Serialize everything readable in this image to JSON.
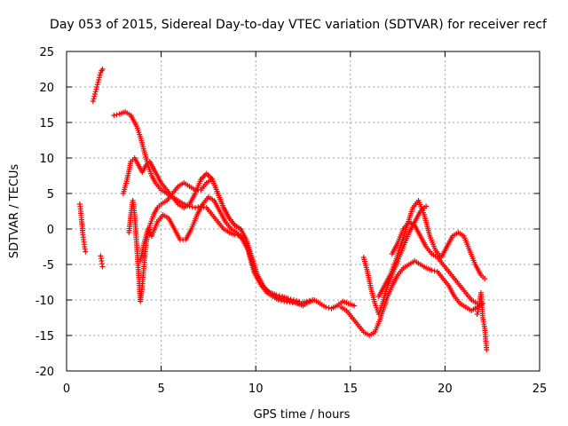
{
  "chart_data": {
    "type": "scatter",
    "title": "Day 053 of 2015, Sidereal Day-to-day VTEC variation (SDTVAR) for receiver recf",
    "xlabel": "GPS time / hours",
    "ylabel": "SDTVAR / TECUs",
    "xlim": [
      0,
      25
    ],
    "ylim": [
      -20,
      25
    ],
    "xticks": [
      0,
      5,
      10,
      15,
      20,
      25
    ],
    "yticks": [
      -20,
      -15,
      -10,
      -5,
      0,
      5,
      10,
      15,
      20,
      25
    ],
    "grid": true,
    "marker": "+",
    "color": "#ff0000",
    "series": [
      {
        "name": "s1",
        "x": [
          0.7,
          0.75,
          0.8,
          0.85,
          0.9,
          0.95,
          1.0
        ],
        "y": [
          3.5,
          2.5,
          1.0,
          -0.5,
          -1.5,
          -2.5,
          -3.2
        ]
      },
      {
        "name": "s2",
        "x": [
          1.4,
          1.5,
          1.6,
          1.7,
          1.8,
          1.85,
          1.9
        ],
        "y": [
          18.0,
          19.0,
          20.0,
          21.0,
          22.0,
          22.3,
          22.5
        ]
      },
      {
        "name": "s3",
        "x": [
          1.8,
          1.85,
          1.9
        ],
        "y": [
          -3.8,
          -4.5,
          -5.3
        ]
      },
      {
        "name": "s4",
        "x": [
          2.5,
          2.8,
          3.1,
          3.4,
          3.7,
          3.9,
          4.1,
          4.3,
          4.5,
          4.7,
          5.0,
          5.3,
          5.6,
          5.9,
          6.2,
          6.5,
          6.8,
          7.1,
          7.4,
          7.7,
          8.0,
          8.3,
          8.6,
          8.9,
          9.2,
          9.5,
          9.8,
          10.0,
          10.3,
          10.6,
          10.9,
          11.2,
          11.5,
          11.8,
          12.1,
          12.4,
          12.7,
          13.0
        ],
        "y": [
          16.0,
          16.2,
          16.5,
          16.0,
          14.5,
          13.0,
          11.0,
          9.0,
          7.5,
          6.5,
          5.5,
          5.0,
          4.5,
          4.0,
          3.5,
          3.2,
          3.0,
          3.2,
          3.0,
          2.0,
          1.0,
          0.0,
          -0.5,
          -0.8,
          -1.0,
          -2.0,
          -4.5,
          -6.5,
          -8.0,
          -9.0,
          -9.5,
          -10.0,
          -10.2,
          -10.3,
          -10.4,
          -10.5,
          -10.2,
          -10.0
        ]
      },
      {
        "name": "s5",
        "x": [
          3.0,
          3.2,
          3.4,
          3.6,
          3.8,
          4.0,
          4.2,
          4.4,
          4.6,
          4.8,
          5.0,
          5.3,
          5.6,
          5.9,
          6.2,
          6.5,
          6.8,
          7.1,
          7.4,
          7.7,
          8.0,
          8.3,
          8.6,
          8.9,
          9.2,
          9.5,
          9.8,
          10.1,
          10.4,
          10.7,
          11.0,
          11.3,
          11.6,
          11.9,
          12.2,
          12.5,
          12.8,
          13.1,
          13.4,
          13.7,
          14.0,
          14.3,
          14.6,
          14.9,
          15.2
        ],
        "y": [
          5.0,
          7.0,
          9.5,
          10.0,
          9.0,
          8.0,
          9.0,
          9.5,
          8.5,
          7.5,
          6.5,
          5.5,
          4.5,
          3.5,
          3.0,
          3.5,
          5.0,
          7.0,
          7.8,
          7.0,
          5.0,
          3.0,
          1.5,
          0.5,
          0.0,
          -1.5,
          -4.0,
          -6.5,
          -8.0,
          -9.0,
          -9.5,
          -9.8,
          -10.0,
          -10.2,
          -10.5,
          -10.8,
          -10.3,
          -10.0,
          -10.5,
          -11.0,
          -11.2,
          -10.8,
          -10.2,
          -10.5,
          -10.8
        ]
      },
      {
        "name": "s6",
        "x": [
          3.3,
          3.4,
          3.5,
          3.6,
          3.7,
          3.8,
          3.9,
          4.0,
          4.1,
          4.2,
          4.4,
          4.6,
          4.8,
          5.0,
          5.3,
          5.6,
          5.9,
          6.2,
          6.5,
          6.8,
          7.1,
          7.4,
          7.7,
          8.0,
          8.3,
          8.6,
          8.9,
          9.2
        ],
        "y": [
          -0.5,
          2.0,
          4.0,
          2.0,
          -2.0,
          -6.0,
          -10.2,
          -8.0,
          -5.0,
          -2.0,
          0.5,
          2.0,
          3.0,
          3.5,
          4.0,
          5.0,
          6.0,
          6.5,
          6.0,
          5.5,
          5.5,
          6.5,
          7.0,
          5.0,
          3.0,
          1.5,
          0.5,
          0.0
        ]
      },
      {
        "name": "s7",
        "x": [
          3.9,
          4.1,
          4.3,
          4.5,
          4.8,
          5.1,
          5.4,
          5.7,
          6.0,
          6.3,
          6.6,
          6.9,
          7.2,
          7.5,
          7.8,
          8.1,
          8.4,
          8.7,
          9.0,
          9.3,
          9.6,
          9.9,
          10.2,
          10.5,
          10.8,
          11.1,
          11.4,
          11.7,
          12.0,
          12.3
        ],
        "y": [
          -4.5,
          -2.0,
          0.0,
          -1.0,
          1.0,
          2.0,
          1.5,
          0.0,
          -1.5,
          -1.5,
          0.0,
          2.0,
          3.5,
          4.5,
          4.0,
          2.5,
          1.0,
          0.0,
          -0.5,
          -1.5,
          -3.0,
          -6.0,
          -7.5,
          -8.5,
          -9.0,
          -9.3,
          -9.5,
          -9.8,
          -10.0,
          -10.2
        ]
      },
      {
        "name": "s8",
        "x": [
          14.5,
          14.8,
          15.1,
          15.4,
          15.7,
          16.0,
          16.3,
          16.6,
          16.9,
          17.2,
          17.5,
          17.8,
          18.1,
          18.4,
          18.7,
          19.0,
          19.3,
          19.6,
          19.9,
          20.2,
          20.5,
          20.8,
          21.1,
          21.4,
          21.7,
          22.0
        ],
        "y": [
          -11.0,
          -11.5,
          -12.5,
          -13.5,
          -14.5,
          -15.0,
          -14.5,
          -12.5,
          -10.0,
          -8.0,
          -6.5,
          -5.5,
          -5.0,
          -4.5,
          -5.0,
          -5.5,
          -5.8,
          -6.0,
          -7.0,
          -8.0,
          -9.5,
          -10.5,
          -11.0,
          -11.5,
          -11.0,
          -10.5
        ]
      },
      {
        "name": "s9",
        "x": [
          15.7,
          15.9,
          16.1,
          16.3,
          16.5,
          16.7,
          16.9,
          17.2,
          17.5,
          17.8,
          18.1,
          18.4,
          18.7,
          19.0
        ],
        "y": [
          -4.0,
          -6.0,
          -8.5,
          -10.5,
          -12.0,
          -10.5,
          -8.5,
          -6.5,
          -4.5,
          -2.5,
          -0.5,
          1.0,
          2.5,
          3.2
        ]
      },
      {
        "name": "s10",
        "x": [
          16.5,
          16.8,
          17.1,
          17.4,
          17.7,
          18.0,
          18.3,
          18.6,
          18.9,
          19.2,
          19.5,
          19.8,
          20.1,
          20.4,
          20.7,
          21.0,
          21.3,
          21.6,
          21.9,
          22.1
        ],
        "y": [
          -9.5,
          -8.0,
          -6.5,
          -4.5,
          -2.0,
          0.5,
          3.0,
          4.0,
          2.0,
          -1.0,
          -3.0,
          -4.0,
          -2.5,
          -1.0,
          -0.5,
          -1.0,
          -3.0,
          -5.0,
          -6.5,
          -7.0
        ]
      },
      {
        "name": "s11",
        "x": [
          17.2,
          17.5,
          17.8,
          18.1,
          18.4,
          18.7,
          19.0,
          19.3,
          19.6,
          19.9,
          20.2,
          20.5,
          20.8,
          21.1,
          21.4,
          21.7
        ],
        "y": [
          -3.5,
          -2.0,
          0.0,
          1.0,
          0.5,
          -1.0,
          -2.5,
          -3.5,
          -4.0,
          -5.0,
          -6.0,
          -7.0,
          -8.0,
          -9.0,
          -10.0,
          -10.5
        ]
      },
      {
        "name": "s12",
        "x": [
          21.7,
          21.8,
          21.9,
          22.0,
          22.1,
          22.15,
          22.2
        ],
        "y": [
          -12.0,
          -11.0,
          -9.0,
          -12.5,
          -14.0,
          -15.5,
          -17.0
        ]
      }
    ]
  }
}
